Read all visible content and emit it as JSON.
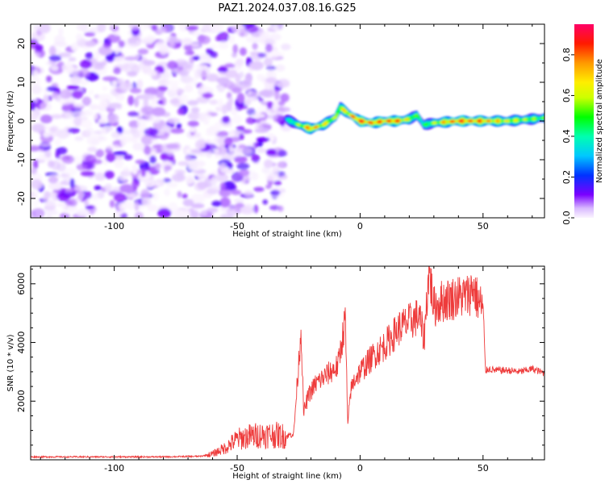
{
  "figure": {
    "title": "PAZ1.2024.037.08.16.G25"
  },
  "chart_data": [
    {
      "type": "heatmap",
      "xlabel": "Height of straight line (km)",
      "ylabel": "Frequency (Hz)",
      "xlim": [
        -134,
        75
      ],
      "ylim": [
        -25,
        25
      ],
      "x_ticks": [
        -100,
        -50,
        0,
        50
      ],
      "x_tick_labels": [
        "-100",
        "-50",
        "0",
        "50"
      ],
      "y_ticks": [
        -20,
        -10,
        0,
        10,
        20
      ],
      "y_tick_labels": [
        "-20",
        "-10",
        "0",
        "10",
        "20"
      ],
      "colorbar": {
        "label": "Normalized spectral amplitude",
        "range": [
          0,
          0.95
        ],
        "ticks": [
          0.0,
          0.2,
          0.4,
          0.6,
          0.8
        ],
        "tick_labels": [
          "0.0",
          "0.2",
          "0.4",
          "0.6",
          "0.8"
        ]
      },
      "noise_region": {
        "x_range": [
          -134,
          -30
        ],
        "y_range": [
          -25,
          25
        ],
        "amplitude_range": [
          0.0,
          0.15
        ]
      },
      "signal_track": {
        "x_range": [
          -30,
          75
        ],
        "frequency_hz": [
          [
            -30,
            0.5
          ],
          [
            -25,
            -1.0
          ],
          [
            -20,
            -2.0
          ],
          [
            -15,
            -1.0
          ],
          [
            -10,
            1.0
          ],
          [
            -8,
            3.5
          ],
          [
            -5,
            2.0
          ],
          [
            0,
            0.0
          ],
          [
            5,
            -0.5
          ],
          [
            10,
            0.0
          ],
          [
            15,
            0.0
          ],
          [
            20,
            0.5
          ],
          [
            23,
            1.5
          ],
          [
            26,
            -1.0
          ],
          [
            30,
            -0.5
          ],
          [
            40,
            0.0
          ],
          [
            50,
            0.0
          ],
          [
            60,
            0.0
          ],
          [
            70,
            0.5
          ],
          [
            75,
            0.8
          ]
        ],
        "peak_amplitude": [
          [
            -30,
            0.35
          ],
          [
            -20,
            0.85
          ],
          [
            -10,
            0.6
          ],
          [
            0,
            0.9
          ],
          [
            10,
            0.85
          ],
          [
            15,
            0.9
          ],
          [
            25,
            0.45
          ],
          [
            35,
            0.8
          ],
          [
            40,
            0.9
          ],
          [
            50,
            0.85
          ],
          [
            60,
            0.7
          ],
          [
            75,
            0.55
          ]
        ]
      }
    },
    {
      "type": "line",
      "xlabel": "Height of straight line (km)",
      "ylabel": "SNR (10 * v/v)",
      "xlim": [
        -134,
        75
      ],
      "ylim": [
        0,
        6600
      ],
      "x_ticks": [
        -100,
        -50,
        0,
        50
      ],
      "x_tick_labels": [
        "-100",
        "-50",
        "0",
        "50"
      ],
      "y_ticks": [
        2000,
        4000,
        6000
      ],
      "y_tick_labels": [
        "2000",
        "4000",
        "6000"
      ],
      "series": [
        {
          "color": "#ee3b3b",
          "x": [
            -134,
            -120,
            -100,
            -80,
            -65,
            -60,
            -55,
            -50,
            -45,
            -40,
            -35,
            -30,
            -27,
            -24,
            -23,
            -21,
            -18,
            -15,
            -12,
            -9,
            -6,
            -5,
            -4,
            -2,
            0,
            3,
            6,
            10,
            13,
            16,
            20,
            24,
            26,
            28,
            30,
            33,
            37,
            40,
            44,
            46,
            48,
            50,
            51,
            52,
            55,
            60,
            65,
            70,
            75
          ],
          "y": [
            100,
            100,
            100,
            100,
            120,
            200,
            400,
            700,
            800,
            850,
            850,
            800,
            900,
            4500,
            1600,
            2200,
            2600,
            2800,
            3000,
            3200,
            4800,
            1100,
            2300,
            2800,
            3000,
            3300,
            3600,
            3900,
            4200,
            4500,
            4700,
            4900,
            4100,
            6500,
            5200,
            5400,
            5500,
            5550,
            5600,
            5900,
            5400,
            5200,
            3000,
            3100,
            3050,
            3050,
            3000,
            3100,
            2950
          ]
        }
      ]
    }
  ]
}
